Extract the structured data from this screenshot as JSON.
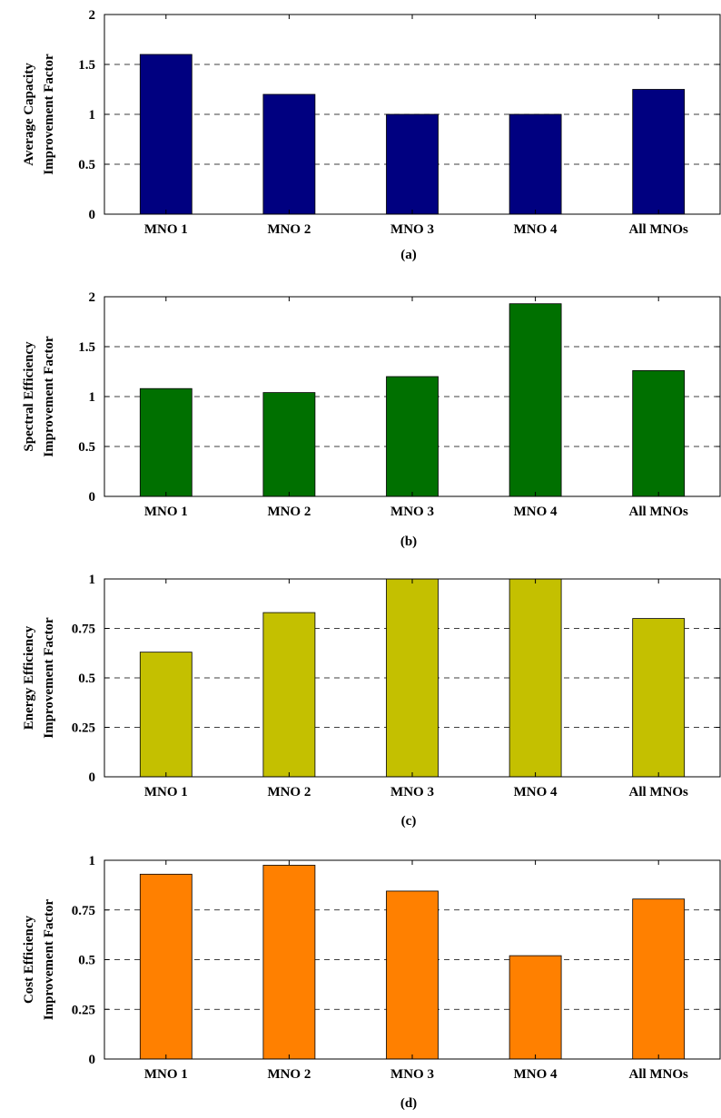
{
  "chart_data": [
    {
      "type": "bar",
      "panel_label": "(a)",
      "ylabel_lines": [
        "Average Capacity",
        "Improvement Factor"
      ],
      "categories": [
        "MNO 1",
        "MNO 2",
        "MNO 3",
        "MNO 4",
        "All MNOs"
      ],
      "values": [
        1.6,
        1.2,
        1.0,
        1.0,
        1.25
      ],
      "ylim": [
        0,
        2
      ],
      "yticks": [
        "0",
        "0.5",
        "1",
        "1.5",
        "2"
      ],
      "ytick_values": [
        0,
        0.5,
        1,
        1.5,
        2
      ],
      "bar_color": "#000080",
      "grid": "y-dashed"
    },
    {
      "type": "bar",
      "panel_label": "(b)",
      "ylabel_lines": [
        "Spectral Efficiency",
        "Improvement Factor"
      ],
      "categories": [
        "MNO 1",
        "MNO 2",
        "MNO 3",
        "MNO 4",
        "All MNOs"
      ],
      "values": [
        1.08,
        1.04,
        1.2,
        1.93,
        1.26
      ],
      "ylim": [
        0,
        2
      ],
      "yticks": [
        "0",
        "0.5",
        "1",
        "1.5",
        "2"
      ],
      "ytick_values": [
        0,
        0.5,
        1,
        1.5,
        2
      ],
      "bar_color": "#007000",
      "grid": "y-dashed"
    },
    {
      "type": "bar",
      "panel_label": "(c)",
      "ylabel_lines": [
        "Energy Efficiency",
        "Improvement Factor"
      ],
      "categories": [
        "MNO 1",
        "MNO 2",
        "MNO 3",
        "MNO 4",
        "All MNOs"
      ],
      "values": [
        0.63,
        0.83,
        1.0,
        1.0,
        0.8
      ],
      "ylim": [
        0,
        1
      ],
      "yticks": [
        "0",
        "0.25",
        "0.5",
        "0.75",
        "1"
      ],
      "ytick_values": [
        0,
        0.25,
        0.5,
        0.75,
        1
      ],
      "bar_color": "#C4C000",
      "grid": "y-dashed"
    },
    {
      "type": "bar",
      "panel_label": "(d)",
      "ylabel_lines": [
        "Cost Efficiency",
        "Improvement Factor"
      ],
      "categories": [
        "MNO 1",
        "MNO 2",
        "MNO 3",
        "MNO 4",
        "All MNOs"
      ],
      "values": [
        0.93,
        0.975,
        0.845,
        0.52,
        0.805
      ],
      "ylim": [
        0,
        1
      ],
      "yticks": [
        "0",
        "0.25",
        "0.5",
        "0.75",
        "1"
      ],
      "ytick_values": [
        0,
        0.25,
        0.5,
        0.75,
        1
      ],
      "bar_color": "#FF8000",
      "grid": "y-dashed"
    }
  ]
}
